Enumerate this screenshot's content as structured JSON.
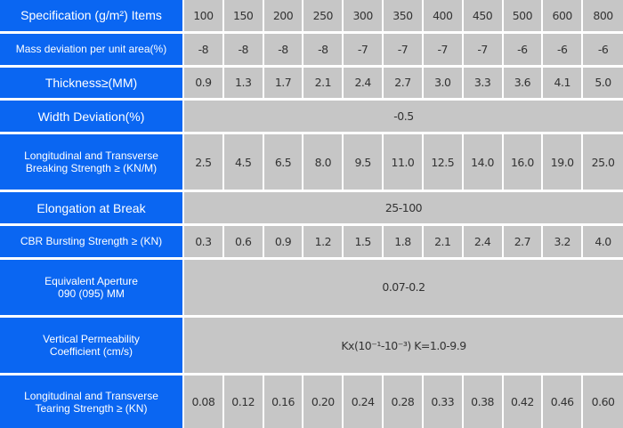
{
  "table": {
    "header_label": "Specification (g/m²) Items",
    "specs": [
      "100",
      "150",
      "200",
      "250",
      "300",
      "350",
      "400",
      "450",
      "500",
      "600",
      "800"
    ],
    "rows": [
      {
        "label": "Mass deviation per unit area(%)",
        "values": [
          "-8",
          "-8",
          "-8",
          "-8",
          "-7",
          "-7",
          "-7",
          "-7",
          "-6",
          "-6",
          "-6"
        ]
      },
      {
        "label": "Thickness≥(MM)",
        "values": [
          "0.9",
          "1.3",
          "1.7",
          "2.1",
          "2.4",
          "2.7",
          "3.0",
          "3.3",
          "3.6",
          "4.1",
          "5.0"
        ]
      },
      {
        "label": "Width Deviation(%)",
        "span_value": "-0.5"
      },
      {
        "label_line1": "Longitudinal and Transverse",
        "label_line2": "Breaking Strength ≥ (KN/M)",
        "values": [
          "2.5",
          "4.5",
          "6.5",
          "8.0",
          "9.5",
          "11.0",
          "12.5",
          "14.0",
          "16.0",
          "19.0",
          "25.0"
        ]
      },
      {
        "label": "Elongation at Break",
        "span_value": "25-100"
      },
      {
        "label": "CBR Bursting Strength ≥ (KN)",
        "values": [
          "0.3",
          "0.6",
          "0.9",
          "1.2",
          "1.5",
          "1.8",
          "2.1",
          "2.4",
          "2.7",
          "3.2",
          "4.0"
        ]
      },
      {
        "label_line1": "Equivalent Aperture",
        "label_line2": "090 (095) MM",
        "span_value": "0.07-0.2"
      },
      {
        "label_line1": "Vertical Permeability",
        "label_line2": "Coefficient (cm/s)",
        "span_value": "Kx(10⁻¹-10⁻³) K=1.0-9.9"
      },
      {
        "label_line1": "Longitudinal and Transverse",
        "label_line2": "Tearing Strength ≥ (KN)",
        "values": [
          "0.08",
          "0.12",
          "0.16",
          "0.20",
          "0.24",
          "0.28",
          "0.33",
          "0.38",
          "0.42",
          "0.46",
          "0.60"
        ]
      }
    ]
  },
  "colors": {
    "label_bg": "#0a66f2",
    "cell_bg": "#c6c6c6"
  }
}
